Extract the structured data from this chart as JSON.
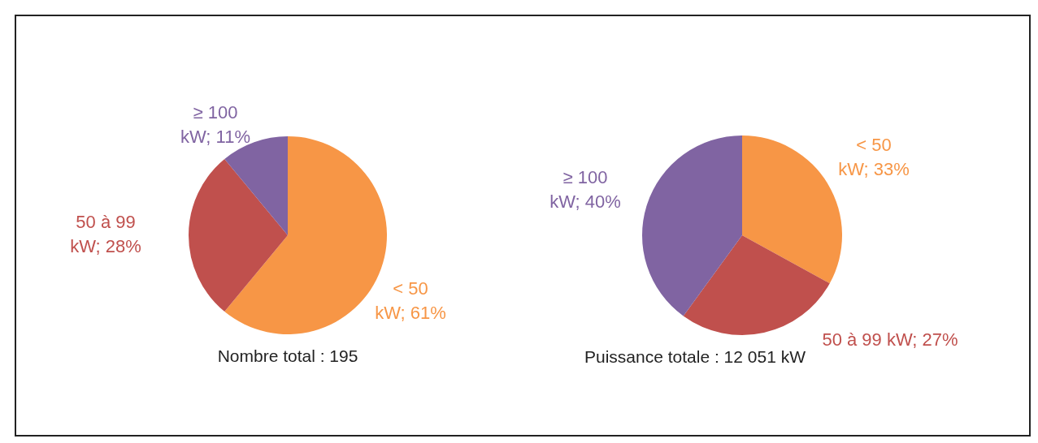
{
  "chart_data": [
    {
      "type": "pie",
      "categories": [
        "< 50 kW",
        "50 à 99 kW",
        "≥ 100 kW"
      ],
      "values": [
        61,
        28,
        11
      ],
      "colors": [
        "#f79646",
        "#c0504d",
        "#8064a2"
      ],
      "value_labels": [
        "61%",
        "28%",
        "11%"
      ],
      "annotations": [
        "Nombre total : 195"
      ],
      "legend": false
    },
    {
      "type": "pie",
      "categories": [
        "< 50 kW",
        "50 à 99 kW",
        "≥ 100 kW"
      ],
      "values": [
        33,
        27,
        40
      ],
      "colors": [
        "#f79646",
        "#c0504d",
        "#8064a2"
      ],
      "value_labels": [
        "33%",
        "27%",
        "40%"
      ],
      "annotations": [
        "Puissance totale : 12 051 kW"
      ],
      "legend": false
    }
  ]
}
